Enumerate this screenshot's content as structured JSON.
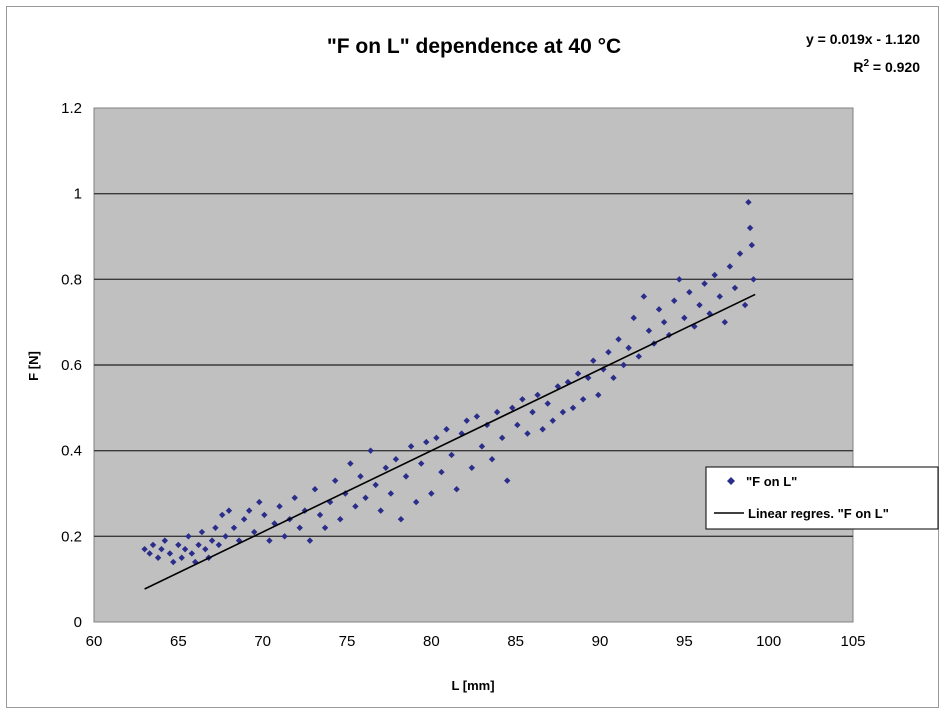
{
  "chart_data": {
    "type": "scatter",
    "title": "\"F on L\" dependence at 40 °C",
    "xlabel": "L [mm]",
    "ylabel": "F [N]",
    "xlim": [
      60,
      105
    ],
    "ylim": [
      0,
      1.2
    ],
    "x_ticks": [
      "60",
      "65",
      "70",
      "75",
      "80",
      "85",
      "90",
      "95",
      "100",
      "105"
    ],
    "y_ticks": [
      "0",
      "0.2",
      "0.4",
      "0.6",
      "0.8",
      "1",
      "1.2"
    ],
    "grid": "horizontal",
    "legend_position": "right",
    "trendline_equation": "y = 0.019x - 1.120",
    "r_squared_label": "R",
    "r_squared_sup": "2",
    "r_squared_value": " = 0.920",
    "colors": {
      "points": "#2b2d8a",
      "line": "#000000",
      "plot_bg": "#c0c0c0",
      "grid": "#3a3a3a"
    },
    "series": [
      {
        "name": "\"F on L\"",
        "kind": "points",
        "points": [
          [
            63.0,
            0.17
          ],
          [
            63.3,
            0.16
          ],
          [
            63.5,
            0.18
          ],
          [
            63.8,
            0.15
          ],
          [
            64.0,
            0.17
          ],
          [
            64.2,
            0.19
          ],
          [
            64.5,
            0.16
          ],
          [
            64.7,
            0.14
          ],
          [
            65.0,
            0.18
          ],
          [
            65.2,
            0.15
          ],
          [
            65.4,
            0.17
          ],
          [
            65.6,
            0.2
          ],
          [
            65.8,
            0.16
          ],
          [
            66.0,
            0.14
          ],
          [
            66.2,
            0.18
          ],
          [
            66.4,
            0.21
          ],
          [
            66.6,
            0.17
          ],
          [
            66.8,
            0.15
          ],
          [
            67.0,
            0.19
          ],
          [
            67.2,
            0.22
          ],
          [
            67.4,
            0.18
          ],
          [
            67.6,
            0.25
          ],
          [
            67.8,
            0.2
          ],
          [
            68.0,
            0.26
          ],
          [
            68.3,
            0.22
          ],
          [
            68.6,
            0.19
          ],
          [
            68.9,
            0.24
          ],
          [
            69.2,
            0.26
          ],
          [
            69.5,
            0.21
          ],
          [
            69.8,
            0.28
          ],
          [
            70.1,
            0.25
          ],
          [
            70.4,
            0.19
          ],
          [
            70.7,
            0.23
          ],
          [
            71.0,
            0.27
          ],
          [
            71.3,
            0.2
          ],
          [
            71.6,
            0.24
          ],
          [
            71.9,
            0.29
          ],
          [
            72.2,
            0.22
          ],
          [
            72.5,
            0.26
          ],
          [
            72.8,
            0.19
          ],
          [
            73.1,
            0.31
          ],
          [
            73.4,
            0.25
          ],
          [
            73.7,
            0.22
          ],
          [
            74.0,
            0.28
          ],
          [
            74.3,
            0.33
          ],
          [
            74.6,
            0.24
          ],
          [
            74.9,
            0.3
          ],
          [
            75.2,
            0.37
          ],
          [
            75.5,
            0.27
          ],
          [
            75.8,
            0.34
          ],
          [
            76.1,
            0.29
          ],
          [
            76.4,
            0.4
          ],
          [
            76.7,
            0.32
          ],
          [
            77.0,
            0.26
          ],
          [
            77.3,
            0.36
          ],
          [
            77.6,
            0.3
          ],
          [
            77.9,
            0.38
          ],
          [
            78.2,
            0.24
          ],
          [
            78.5,
            0.34
          ],
          [
            78.8,
            0.41
          ],
          [
            79.1,
            0.28
          ],
          [
            79.4,
            0.37
          ],
          [
            79.7,
            0.42
          ],
          [
            80.0,
            0.3
          ],
          [
            80.3,
            0.43
          ],
          [
            80.6,
            0.35
          ],
          [
            80.9,
            0.45
          ],
          [
            81.2,
            0.39
          ],
          [
            81.5,
            0.31
          ],
          [
            81.8,
            0.44
          ],
          [
            82.1,
            0.47
          ],
          [
            82.4,
            0.36
          ],
          [
            82.7,
            0.48
          ],
          [
            83.0,
            0.41
          ],
          [
            83.3,
            0.46
          ],
          [
            83.6,
            0.38
          ],
          [
            83.9,
            0.49
          ],
          [
            84.2,
            0.43
          ],
          [
            84.5,
            0.33
          ],
          [
            84.8,
            0.5
          ],
          [
            85.1,
            0.46
          ],
          [
            85.4,
            0.52
          ],
          [
            85.7,
            0.44
          ],
          [
            86.0,
            0.49
          ],
          [
            86.3,
            0.53
          ],
          [
            86.6,
            0.45
          ],
          [
            86.9,
            0.51
          ],
          [
            87.2,
            0.47
          ],
          [
            87.5,
            0.55
          ],
          [
            87.8,
            0.49
          ],
          [
            88.1,
            0.56
          ],
          [
            88.4,
            0.5
          ],
          [
            88.7,
            0.58
          ],
          [
            89.0,
            0.52
          ],
          [
            89.3,
            0.57
          ],
          [
            89.6,
            0.61
          ],
          [
            89.9,
            0.53
          ],
          [
            90.2,
            0.59
          ],
          [
            90.5,
            0.63
          ],
          [
            90.8,
            0.57
          ],
          [
            91.1,
            0.66
          ],
          [
            91.4,
            0.6
          ],
          [
            91.7,
            0.64
          ],
          [
            92.0,
            0.71
          ],
          [
            92.3,
            0.62
          ],
          [
            92.6,
            0.76
          ],
          [
            92.9,
            0.68
          ],
          [
            93.2,
            0.65
          ],
          [
            93.5,
            0.73
          ],
          [
            93.8,
            0.7
          ],
          [
            94.1,
            0.67
          ],
          [
            94.4,
            0.75
          ],
          [
            94.7,
            0.8
          ],
          [
            95.0,
            0.71
          ],
          [
            95.3,
            0.77
          ],
          [
            95.6,
            0.69
          ],
          [
            95.9,
            0.74
          ],
          [
            96.2,
            0.79
          ],
          [
            96.5,
            0.72
          ],
          [
            96.8,
            0.81
          ],
          [
            97.1,
            0.76
          ],
          [
            97.4,
            0.7
          ],
          [
            97.7,
            0.83
          ],
          [
            98.0,
            0.78
          ],
          [
            98.3,
            0.86
          ],
          [
            98.6,
            0.74
          ],
          [
            98.9,
            0.92
          ],
          [
            99.1,
            0.8
          ],
          [
            98.8,
            0.98
          ],
          [
            99.0,
            0.88
          ]
        ]
      },
      {
        "name": "Linear regres. \"F on L\"",
        "kind": "line",
        "slope": 0.019,
        "intercept": -1.12,
        "x_range": [
          63.0,
          99.2
        ]
      }
    ]
  }
}
